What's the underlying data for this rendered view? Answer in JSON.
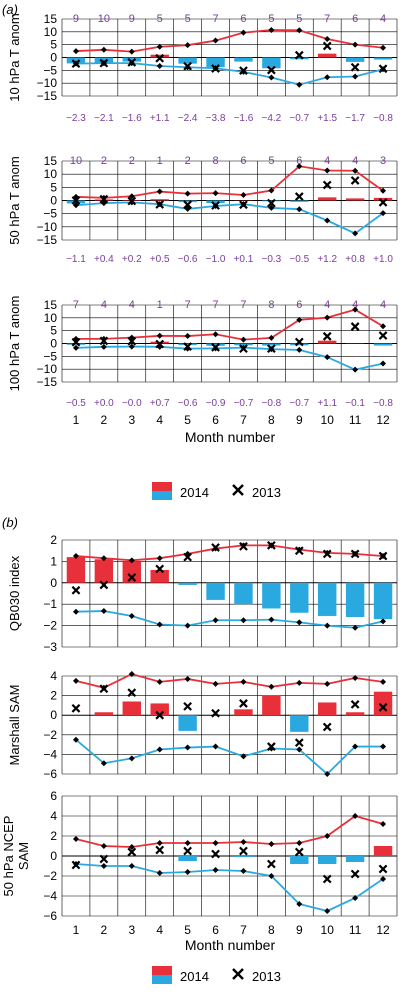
{
  "colors": {
    "red_line": "#e8303a",
    "blue_line": "#2aa9e0",
    "bar_red": "#e8303a",
    "bar_blue": "#2aa9e0",
    "purple_text": "#7a3d9a",
    "grid": "#000000",
    "marker": "#000000"
  },
  "panel_a": {
    "tag": "a",
    "xlabel": "Month number",
    "legend": {
      "swatch_label": "2014",
      "marker_label": "2013"
    }
  },
  "panel_b": {
    "tag": "b",
    "xlabel": "Month number",
    "legend": {
      "swatch_label": "2014",
      "marker_label": "2013"
    }
  },
  "chart_data": [
    {
      "type": "bar",
      "id": "t10",
      "ylabel": "10 hPa T anom",
      "ylim": [
        -15,
        15
      ],
      "yticks": [
        -15,
        -10,
        -5,
        0,
        5,
        10,
        15
      ],
      "categories": [
        "1",
        "2",
        "3",
        "4",
        "5",
        "6",
        "7",
        "8",
        "9",
        "10",
        "11",
        "12"
      ],
      "top_labels": [
        "9",
        "10",
        "9",
        "5",
        "5",
        "7",
        "6",
        "5",
        "5",
        "7",
        "6",
        "4"
      ],
      "bottom_labels": [
        "−2.3",
        "−2.1",
        "−1.6",
        "+1.1",
        "−2.4",
        "−3.8",
        "−1.6",
        "−4.2",
        "−0.7",
        "+1.5",
        "−1.7",
        "−0.8"
      ],
      "series": [
        {
          "name": "2014",
          "kind": "bars",
          "values": [
            -2.3,
            -2.1,
            -1.6,
            1.1,
            -2.4,
            -3.8,
            -1.6,
            -4.2,
            -0.7,
            1.5,
            -1.7,
            -0.8
          ]
        },
        {
          "kind": "upper_line",
          "values": [
            2.5,
            3.0,
            2.3,
            4.2,
            4.8,
            6.6,
            9.7,
            10.7,
            10.6,
            7.2,
            5.0,
            3.8
          ]
        },
        {
          "kind": "lower_line",
          "values": [
            -2.4,
            -2.2,
            -2.2,
            -3.3,
            -3.8,
            -4.2,
            -5.6,
            -7.8,
            -10.6,
            -7.7,
            -7.4,
            -4.6
          ]
        },
        {
          "name": "2013",
          "kind": "markers",
          "values": [
            -2.4,
            -2.2,
            -1.9,
            -0.3,
            -3.4,
            -4.3,
            -5.1,
            -4.9,
            0.9,
            4.5,
            -3.8,
            -4.4
          ]
        }
      ]
    },
    {
      "type": "bar",
      "id": "t50",
      "ylabel": "50 hPa T anom",
      "ylim": [
        -15,
        15
      ],
      "yticks": [
        -15,
        -10,
        -5,
        0,
        5,
        10,
        15
      ],
      "categories": [
        "1",
        "2",
        "3",
        "4",
        "5",
        "6",
        "7",
        "8",
        "9",
        "10",
        "11",
        "12"
      ],
      "top_labels": [
        "10",
        "2",
        "2",
        "1",
        "2",
        "8",
        "6",
        "5",
        "6",
        "4",
        "4",
        "3"
      ],
      "bottom_labels": [
        "−1.1",
        "+0.4",
        "+0.2",
        "+0.5",
        "−0.6",
        "−1.0",
        "+0.1",
        "−0.3",
        "−0.5",
        "+1.2",
        "+0.8",
        "+1.0"
      ],
      "series": [
        {
          "name": "2014",
          "kind": "bars",
          "values": [
            -1.1,
            0.4,
            0.2,
            0.5,
            -0.6,
            -1.0,
            0.1,
            -0.3,
            -0.5,
            1.2,
            0.8,
            1.0
          ]
        },
        {
          "kind": "upper_line",
          "values": [
            1.4,
            1.0,
            1.6,
            3.4,
            2.6,
            2.8,
            2.1,
            3.8,
            13.0,
            11.4,
            11.3,
            3.7
          ]
        },
        {
          "kind": "lower_line",
          "values": [
            -1.8,
            -1.0,
            -0.7,
            -1.4,
            -3.2,
            -2.1,
            -1.4,
            -2.8,
            -3.3,
            -7.6,
            -12.5,
            -4.8
          ]
        },
        {
          "name": "2013",
          "kind": "markers",
          "values": [
            0.0,
            0.5,
            -0.2,
            -1.5,
            -1.6,
            -1.9,
            -1.6,
            -1.0,
            1.5,
            5.9,
            7.6,
            -0.7
          ]
        }
      ]
    },
    {
      "type": "bar",
      "id": "t100",
      "ylabel": "100 hPa T anom",
      "ylim": [
        -15,
        15
      ],
      "yticks": [
        -15,
        -10,
        -5,
        0,
        5,
        10,
        15
      ],
      "categories": [
        "1",
        "2",
        "3",
        "4",
        "5",
        "6",
        "7",
        "8",
        "9",
        "10",
        "11",
        "12"
      ],
      "top_labels": [
        "7",
        "4",
        "4",
        "1",
        "7",
        "7",
        "7",
        "8",
        "6",
        "4",
        "4",
        "4"
      ],
      "bottom_labels": [
        "−0.5",
        "+0.0",
        "−0.0",
        "+0.7",
        "−0.6",
        "−0.9",
        "−0.7",
        "−0.8",
        "−0.7",
        "+1.1",
        "−0.1",
        "−0.8"
      ],
      "series": [
        {
          "name": "2014",
          "kind": "bars",
          "values": [
            -0.5,
            0.0,
            0.0,
            0.7,
            -0.6,
            -0.9,
            -0.7,
            -0.8,
            -0.7,
            1.1,
            -0.1,
            -0.8
          ]
        },
        {
          "kind": "upper_line",
          "values": [
            1.8,
            1.8,
            2.3,
            3.0,
            2.9,
            3.6,
            1.5,
            2.2,
            9.2,
            10.1,
            13.2,
            6.7
          ]
        },
        {
          "kind": "lower_line",
          "values": [
            -1.7,
            -1.3,
            -1.2,
            -1.3,
            -2.0,
            -1.9,
            -1.6,
            -2.2,
            -2.5,
            -5.3,
            -10.2,
            -7.8
          ]
        },
        {
          "name": "2013",
          "kind": "markers",
          "values": [
            0.5,
            1.0,
            0.9,
            -0.2,
            -1.2,
            -1.5,
            -2.0,
            -2.0,
            0.6,
            2.8,
            6.6,
            3.1
          ]
        }
      ]
    },
    {
      "type": "bar",
      "id": "qbo",
      "ylabel": "QB030 index",
      "ylim": [
        -3,
        2
      ],
      "yticks": [
        -3,
        -2,
        -1,
        0,
        1,
        2
      ],
      "categories": [
        "1",
        "2",
        "3",
        "4",
        "5",
        "6",
        "7",
        "8",
        "9",
        "10",
        "11",
        "12"
      ],
      "series": [
        {
          "name": "2014",
          "kind": "bars",
          "values": [
            1.2,
            1.1,
            1.0,
            0.6,
            -0.1,
            -0.8,
            -1.0,
            -1.2,
            -1.4,
            -1.55,
            -1.6,
            -1.7
          ]
        },
        {
          "kind": "upper_line",
          "values": [
            1.25,
            1.15,
            1.05,
            1.15,
            1.35,
            1.6,
            1.75,
            1.75,
            1.55,
            1.4,
            1.35,
            1.25
          ]
        },
        {
          "kind": "lower_line",
          "values": [
            -1.35,
            -1.32,
            -1.55,
            -1.95,
            -2.0,
            -1.75,
            -1.75,
            -1.72,
            -1.85,
            -2.0,
            -2.1,
            -1.8
          ]
        },
        {
          "name": "2013",
          "kind": "markers",
          "values": [
            -0.35,
            -0.1,
            0.25,
            0.65,
            1.2,
            1.65,
            1.7,
            1.75,
            1.5,
            1.35,
            1.35,
            1.25
          ]
        }
      ]
    },
    {
      "type": "bar",
      "id": "msam",
      "ylabel": "Marshall SAM",
      "ylim": [
        -6,
        4
      ],
      "yticks": [
        -6,
        -4,
        -2,
        0,
        2,
        4
      ],
      "categories": [
        "1",
        "2",
        "3",
        "4",
        "5",
        "6",
        "7",
        "8",
        "9",
        "10",
        "11",
        "12"
      ],
      "series": [
        {
          "name": "2014",
          "kind": "bars",
          "values": [
            0.0,
            0.3,
            1.4,
            1.2,
            -1.6,
            0.0,
            0.6,
            2.0,
            -1.7,
            1.3,
            0.3,
            2.4
          ]
        },
        {
          "kind": "upper_line",
          "values": [
            3.5,
            2.8,
            4.2,
            3.4,
            3.7,
            3.2,
            3.4,
            2.9,
            3.3,
            3.2,
            3.8,
            3.4
          ]
        },
        {
          "kind": "lower_line",
          "values": [
            -2.5,
            -4.9,
            -4.4,
            -3.5,
            -3.3,
            -3.2,
            -4.2,
            -3.4,
            -3.5,
            -6.0,
            -3.2,
            -3.2
          ]
        },
        {
          "name": "2013",
          "kind": "markers",
          "values": [
            0.7,
            2.7,
            2.3,
            0.0,
            0.9,
            0.2,
            1.2,
            -3.2,
            -2.8,
            -1.2,
            1.1,
            0.8
          ]
        }
      ]
    },
    {
      "type": "bar",
      "id": "ncep",
      "ylabel": "50 hPa NCEP SAM",
      "ylim": [
        -6,
        6
      ],
      "yticks": [
        -6,
        -4,
        -2,
        0,
        2,
        4,
        6
      ],
      "categories": [
        "1",
        "2",
        "3",
        "4",
        "5",
        "6",
        "7",
        "8",
        "9",
        "10",
        "11",
        "12"
      ],
      "series": [
        {
          "name": "2014",
          "kind": "bars",
          "values": [
            0.0,
            0.0,
            0.0,
            0.0,
            -0.5,
            0.0,
            -0.1,
            0.0,
            -0.8,
            -0.8,
            -0.6,
            1.0
          ]
        },
        {
          "kind": "upper_line",
          "values": [
            1.7,
            1.0,
            0.9,
            1.3,
            1.3,
            1.3,
            1.4,
            1.2,
            1.3,
            2.0,
            4.0,
            3.2
          ]
        },
        {
          "kind": "lower_line",
          "values": [
            -0.8,
            -1.0,
            -1.0,
            -1.7,
            -1.6,
            -1.4,
            -1.5,
            -2.0,
            -4.8,
            -5.5,
            -4.2,
            -2.3
          ]
        },
        {
          "name": "2013",
          "kind": "markers",
          "values": [
            -0.9,
            -0.3,
            0.4,
            0.6,
            0.5,
            0.2,
            0.5,
            -0.8,
            0.4,
            -2.3,
            -1.8,
            -1.3
          ]
        }
      ]
    }
  ]
}
